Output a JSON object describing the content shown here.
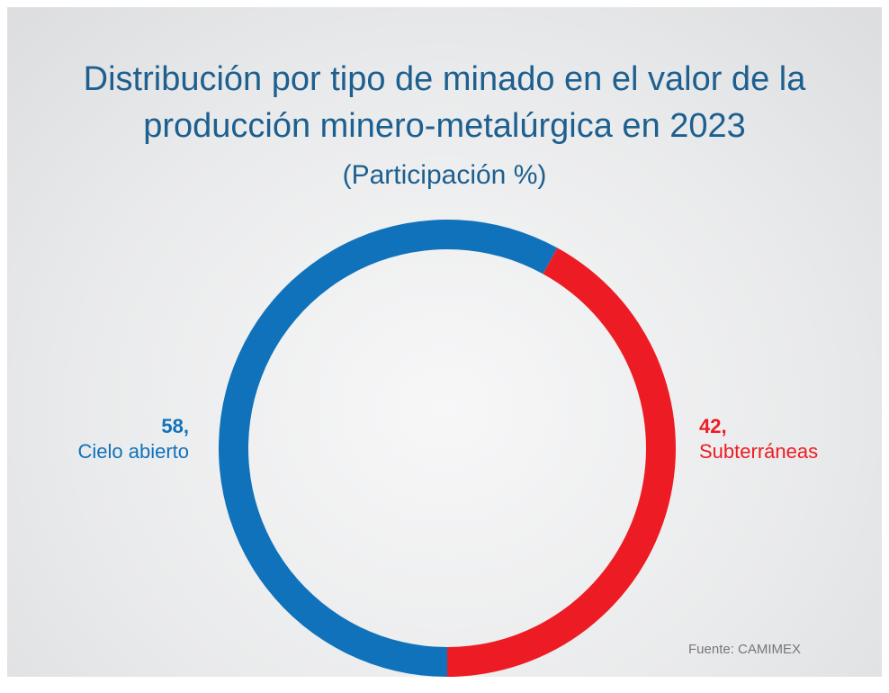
{
  "chart_data": {
    "type": "donut",
    "title": "Distribución por tipo de minado en el valor de la producción minero-metalúrgica en 2023",
    "subtitle": "(Participación %)",
    "categories": [
      "Cielo abierto",
      "Subterráneas"
    ],
    "values": [
      58,
      42
    ],
    "value_labels": [
      "58,",
      "42,"
    ],
    "colors": [
      "#1072ba",
      "#ed1c24"
    ],
    "source": "Fuente: CAMIMEX"
  }
}
